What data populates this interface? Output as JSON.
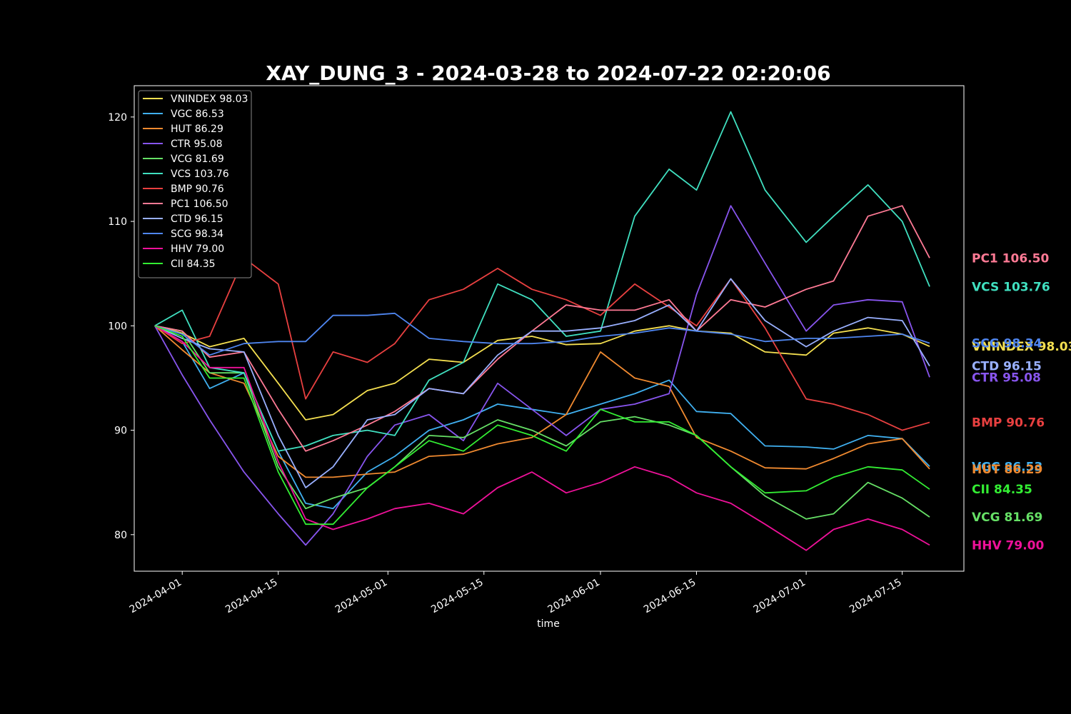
{
  "chart_data": {
    "type": "line",
    "title": "XAY_DUNG_3 - 2024-03-28 to 2024-07-22 02:20:06",
    "xlabel": "time",
    "ylabel": "",
    "xlim": [
      "2024-03-25",
      "2024-07-24"
    ],
    "ylim": [
      76.5,
      123
    ],
    "yticks": [
      80,
      90,
      100,
      110,
      120
    ],
    "xticks": [
      "2024-04-01",
      "2024-04-15",
      "2024-05-01",
      "2024-05-15",
      "2024-06-01",
      "2024-06-15",
      "2024-07-01",
      "2024-07-15"
    ],
    "grid": false,
    "legend_position": "top-left",
    "x": [
      "2024-03-28",
      "2024-04-01",
      "2024-04-05",
      "2024-04-10",
      "2024-04-15",
      "2024-04-19",
      "2024-04-23",
      "2024-04-28",
      "2024-05-02",
      "2024-05-07",
      "2024-05-12",
      "2024-05-17",
      "2024-05-22",
      "2024-05-27",
      "2024-06-01",
      "2024-06-06",
      "2024-06-11",
      "2024-06-15",
      "2024-06-20",
      "2024-06-25",
      "2024-07-01",
      "2024-07-05",
      "2024-07-10",
      "2024-07-15",
      "2024-07-19"
    ],
    "series": [
      {
        "name": "VNINDEX 98.03",
        "color": "#f5e050",
        "values": [
          100,
          99.3,
          98,
          98.8,
          94.5,
          91,
          91.5,
          93.8,
          94.5,
          96.8,
          96.5,
          98.6,
          99,
          98.2,
          98.3,
          99.5,
          100,
          99.5,
          99.3,
          97.5,
          97.2,
          99.3,
          99.8,
          99.2,
          98.03
        ]
      },
      {
        "name": "VGC 86.53",
        "color": "#40b0f0",
        "values": [
          100,
          98.5,
          94,
          95.5,
          88,
          83,
          82.5,
          86,
          87.5,
          90,
          91,
          92.5,
          92,
          91.5,
          92.5,
          93.5,
          94.8,
          91.8,
          91.6,
          88.5,
          88.4,
          88.2,
          89.5,
          89.2,
          86.53
        ]
      },
      {
        "name": "HUT 86.29",
        "color": "#f08a30",
        "values": [
          100,
          97.7,
          95.5,
          94.5,
          87.5,
          85.5,
          85.5,
          85.8,
          86,
          87.5,
          87.7,
          88.7,
          89.3,
          91.5,
          97.5,
          95,
          94.2,
          89.3,
          88,
          86.4,
          86.3,
          87.3,
          88.7,
          89.2,
          86.29
        ]
      },
      {
        "name": "CTR 95.08",
        "color": "#8855ee",
        "values": [
          100,
          95.3,
          91,
          86,
          82,
          79,
          82,
          87.5,
          90.5,
          91.5,
          89,
          94.5,
          92,
          89.5,
          92,
          92.5,
          93.5,
          103,
          111.5,
          106,
          99.5,
          102,
          102.5,
          102.3,
          95.08
        ]
      },
      {
        "name": "VCG 81.69",
        "color": "#66e066",
        "values": [
          100,
          99.5,
          95.5,
          95.5,
          86.5,
          82.5,
          83.5,
          84.5,
          86.5,
          89.5,
          89.3,
          91,
          90,
          88.5,
          90.8,
          91.3,
          90.5,
          89.5,
          86.5,
          83.7,
          81.5,
          82,
          85,
          83.5,
          81.69
        ]
      },
      {
        "name": "VCS 103.76",
        "color": "#40e0c0",
        "values": [
          100,
          101.5,
          96,
          95.5,
          88,
          88.5,
          89.5,
          90,
          89.5,
          94.8,
          96.5,
          104,
          102.5,
          99,
          99.5,
          110.5,
          115,
          113,
          120.5,
          113,
          108,
          110.5,
          113.5,
          110,
          103.76
        ]
      },
      {
        "name": "BMP 90.76",
        "color": "#e84040",
        "values": [
          100,
          98.3,
          99,
          106.5,
          104,
          93,
          97.5,
          96.5,
          98.3,
          102.5,
          103.5,
          105.5,
          103.5,
          102.5,
          101,
          104,
          101.8,
          100,
          104.5,
          99.8,
          93,
          92.5,
          91.5,
          90,
          90.76
        ]
      },
      {
        "name": "PC1 106.50",
        "color": "#ff7a95",
        "values": [
          100,
          99.5,
          97,
          97.5,
          92,
          88,
          89,
          90.5,
          91.8,
          94,
          93.5,
          96.8,
          99.5,
          102,
          101.5,
          101.5,
          102.5,
          99.5,
          102.5,
          101.8,
          103.5,
          104.3,
          110.5,
          111.5,
          106.5
        ]
      },
      {
        "name": "CTD 96.15",
        "color": "#99b0ff",
        "values": [
          100,
          98.8,
          97.8,
          97.5,
          89.5,
          84.5,
          86.5,
          91,
          91.5,
          94,
          93.5,
          97.2,
          99.5,
          99.5,
          99.8,
          100.5,
          102,
          99.5,
          104.5,
          100.5,
          98,
          99.5,
          100.8,
          100.5,
          96.15
        ]
      },
      {
        "name": "SCG 98.34",
        "color": "#4f86f0",
        "values": [
          100,
          99.2,
          97.2,
          98.3,
          98.5,
          98.5,
          101,
          101,
          101.2,
          98.8,
          98.5,
          98.3,
          98.3,
          98.5,
          99,
          99.3,
          99.8,
          99.5,
          99.2,
          98.5,
          98.8,
          98.8,
          99,
          99.2,
          98.34
        ]
      },
      {
        "name": "HHV 79.00",
        "color": "#ee1199",
        "values": [
          100,
          98.5,
          96,
          96,
          87,
          81.5,
          80.5,
          81.5,
          82.5,
          83,
          82,
          84.5,
          86,
          84,
          85,
          86.5,
          85.5,
          84,
          83,
          81,
          78.5,
          80.5,
          81.5,
          80.5,
          79.0
        ]
      },
      {
        "name": "CII 84.35",
        "color": "#33ee33",
        "values": [
          100,
          99,
          95,
          95,
          86,
          81,
          81,
          84.5,
          86.5,
          89,
          88,
          90.5,
          89.5,
          88,
          92,
          90.8,
          90.8,
          89.5,
          86.5,
          84,
          84.2,
          85.5,
          86.5,
          86.2,
          84.35
        ]
      }
    ]
  }
}
